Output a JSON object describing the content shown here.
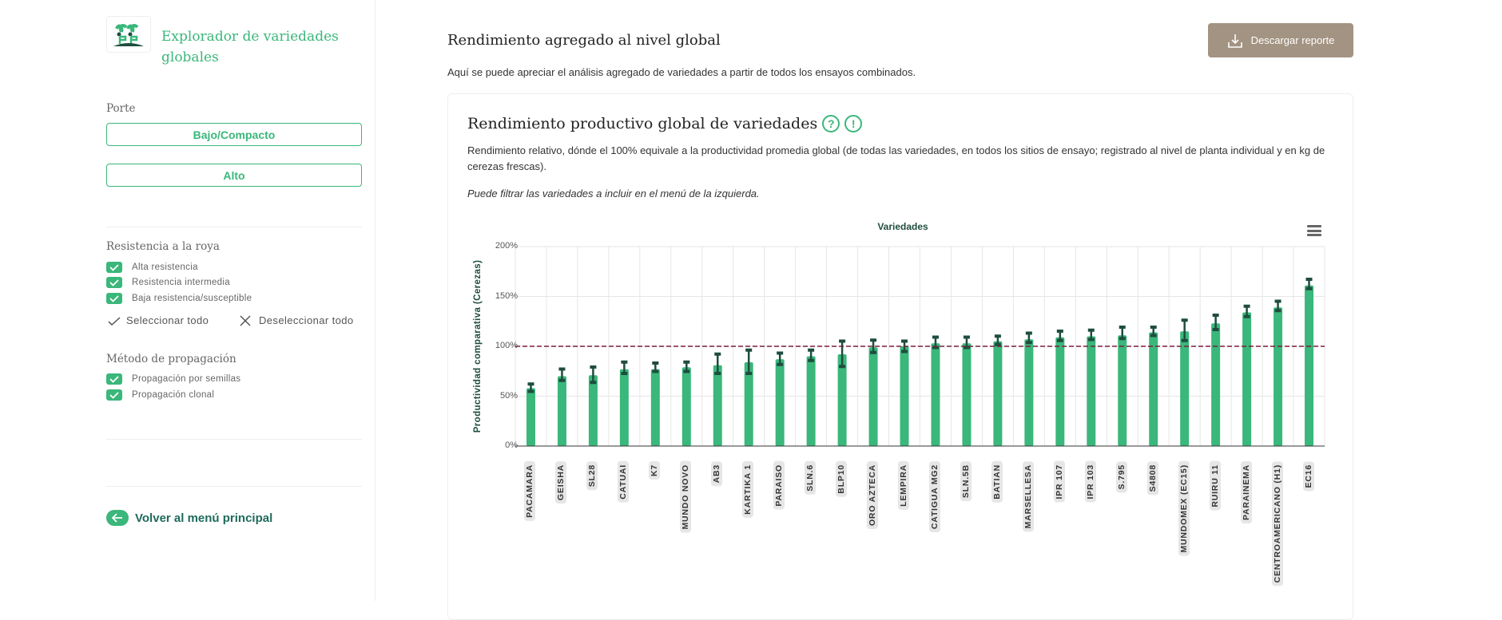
{
  "sidebar": {
    "app_title": "Explorador de variedades globales",
    "porte": {
      "label": "Porte",
      "buttons": [
        "Bajo/Compacto",
        "Alto"
      ]
    },
    "roya": {
      "label": "Resistencia a la roya",
      "items": [
        {
          "label": "Alta resistencia",
          "checked": true
        },
        {
          "label": "Resistencia intermedia",
          "checked": true
        },
        {
          "label": "Baja resistencia/susceptible",
          "checked": true
        }
      ]
    },
    "propagacion": {
      "label": "Método de propagación",
      "items": [
        {
          "label": "Propagación por semillas",
          "checked": true
        },
        {
          "label": "Propagación clonal",
          "checked": true
        }
      ]
    },
    "select_all": "Seleccionar todo",
    "deselect_all": "Deseleccionar todo",
    "back": "Volver al menú principal"
  },
  "header": {
    "title": "Rendimiento agregado al nivel global",
    "subtitle": "Aquí se puede apreciar el análisis agregado de variedades a partir de todos los ensayos combinados.",
    "download": "Descargar reporte"
  },
  "card": {
    "title": "Rendimiento productivo global de variedades",
    "help_icon": "?",
    "warning_icon": "!",
    "description": "Rendimiento relativo, dónde el 100% equivale a la productividad promedia global (de todas las variedades, en todos los sitios de ensayo; registrado al nivel de planta individual y en kg de cerezas frescas).",
    "note": "Puede filtrar las variedades a incluir en el menú de la izquierda."
  },
  "colors": {
    "accent": "#3ab77a",
    "bar": "#3ab77a",
    "error_bar": "#1e4d3f",
    "reference_line": "#7a1f3d",
    "download_button": "#a39382"
  },
  "chart_data": {
    "type": "bar",
    "title": "Variedades",
    "xlabel": "",
    "ylabel": "Productividad comparativa (Cerezas)",
    "ylim": [
      0,
      200
    ],
    "yticks": [
      "0%",
      "50%",
      "100%",
      "150%",
      "200%"
    ],
    "grid": true,
    "reference_line": 100,
    "categories": [
      "PACAMARA",
      "GEISHA",
      "SL28",
      "CATUAI",
      "K7",
      "MUNDO NOVO",
      "AB3",
      "KARTIKA 1",
      "PARAISO",
      "SLN.6",
      "BLP10",
      "ORO AZTECA",
      "LEMPIRA",
      "CATIGUA MG2",
      "SLN.5B",
      "BATIAN",
      "MARSELLESA",
      "IPR 107",
      "IPR 103",
      "S.795",
      "S4808",
      "MUNDOMEX (EC15)",
      "RUIRU 11",
      "PARAINEMA",
      "CENTROAMERICANO (H1)",
      "EC16"
    ],
    "values": [
      58,
      70,
      71,
      77,
      77,
      79,
      81,
      84,
      87,
      90,
      92,
      99,
      100,
      103,
      103,
      105,
      107,
      109,
      110,
      111,
      114,
      115,
      123,
      134,
      139,
      161
    ],
    "error_low": [
      54,
      65,
      63,
      72,
      74,
      74,
      72,
      72,
      81,
      85,
      79,
      93,
      94,
      98,
      98,
      101,
      103,
      105,
      106,
      107,
      110,
      105,
      116,
      129,
      135,
      157
    ],
    "error_high": [
      63,
      78,
      80,
      85,
      84,
      85,
      93,
      97,
      94,
      97,
      106,
      107,
      106,
      110,
      110,
      111,
      114,
      116,
      117,
      120,
      120,
      127,
      132,
      141,
      146,
      168
    ]
  }
}
